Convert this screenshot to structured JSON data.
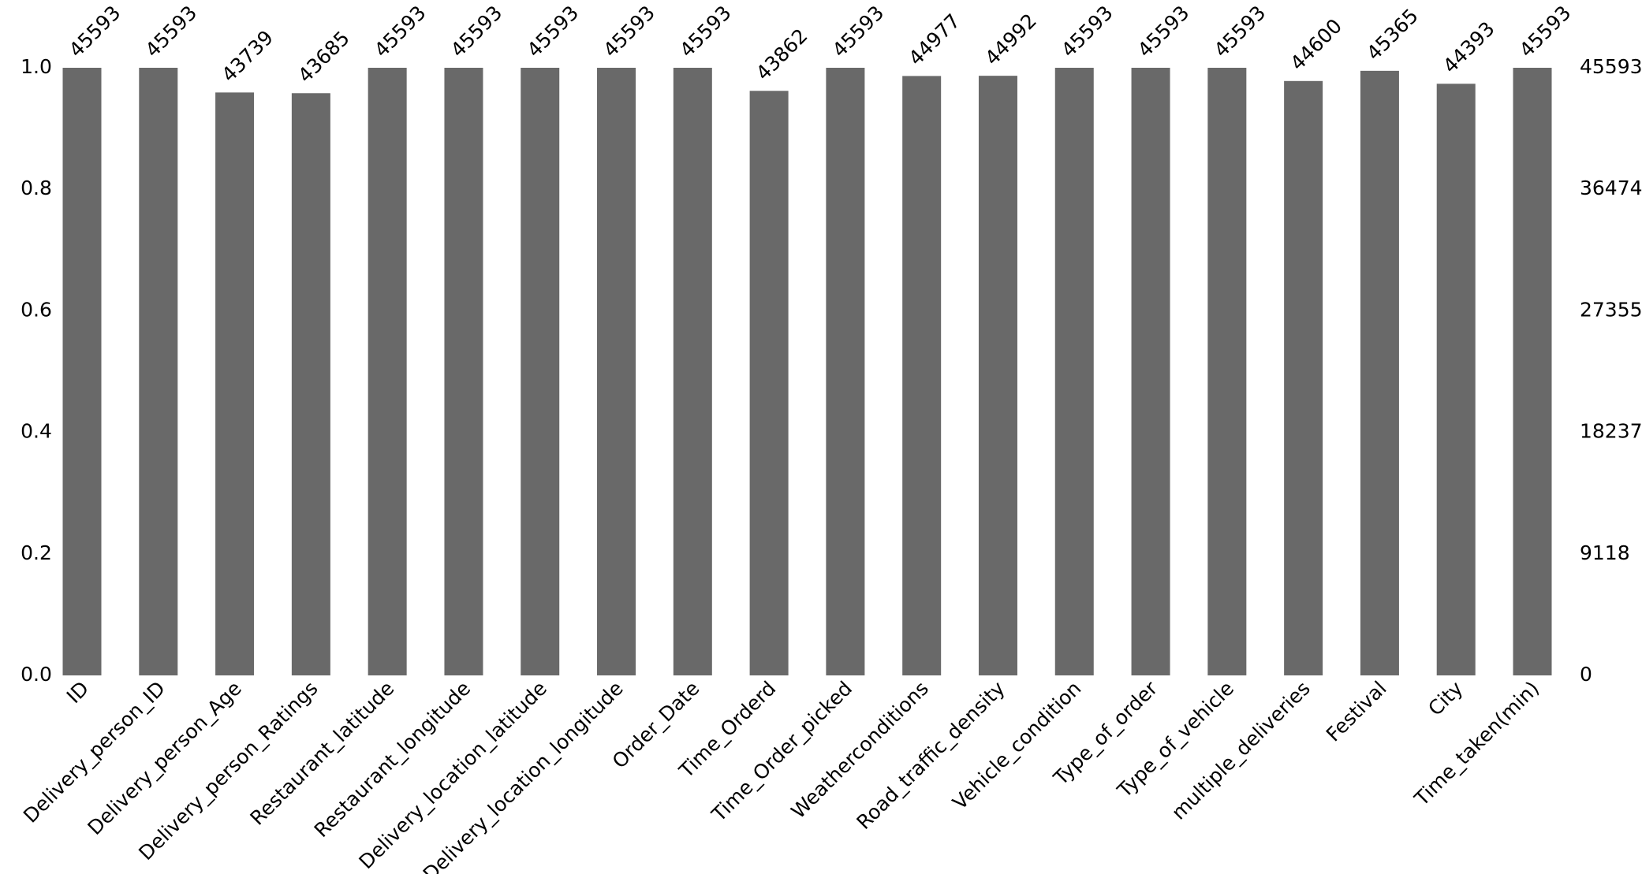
{
  "chart_data": {
    "type": "bar",
    "categories": [
      "ID",
      "Delivery_person_ID",
      "Delivery_person_Age",
      "Delivery_person_Ratings",
      "Restaurant_latitude",
      "Restaurant_longitude",
      "Delivery_location_latitude",
      "Delivery_location_longitude",
      "Order_Date",
      "Time_Orderd",
      "Time_Order_picked",
      "Weatherconditions",
      "Road_traffic_density",
      "Vehicle_condition",
      "Type_of_order",
      "Type_of_vehicle",
      "multiple_deliveries",
      "Festival",
      "City",
      "Time_taken(min)"
    ],
    "series": [
      {
        "color": "#696969",
        "axis": "y2",
        "values": [
          45593,
          45593,
          43739,
          43685,
          45593,
          45593,
          45593,
          45593,
          45593,
          43862,
          45593,
          44977,
          44992,
          45593,
          45593,
          45593,
          44600,
          45365,
          44393,
          45593
        ]
      }
    ],
    "ylim": [
      0,
      1
    ],
    "yticks": [
      {
        "value": 0,
        "label": "0.0"
      },
      0.2,
      0.4,
      0.6,
      0.8,
      {
        "value": 1,
        "label": "1.0"
      }
    ],
    "y2lim": [
      0,
      45593
    ],
    "y2ticks": [
      0,
      9118,
      18237,
      27355,
      36474,
      45593
    ]
  }
}
